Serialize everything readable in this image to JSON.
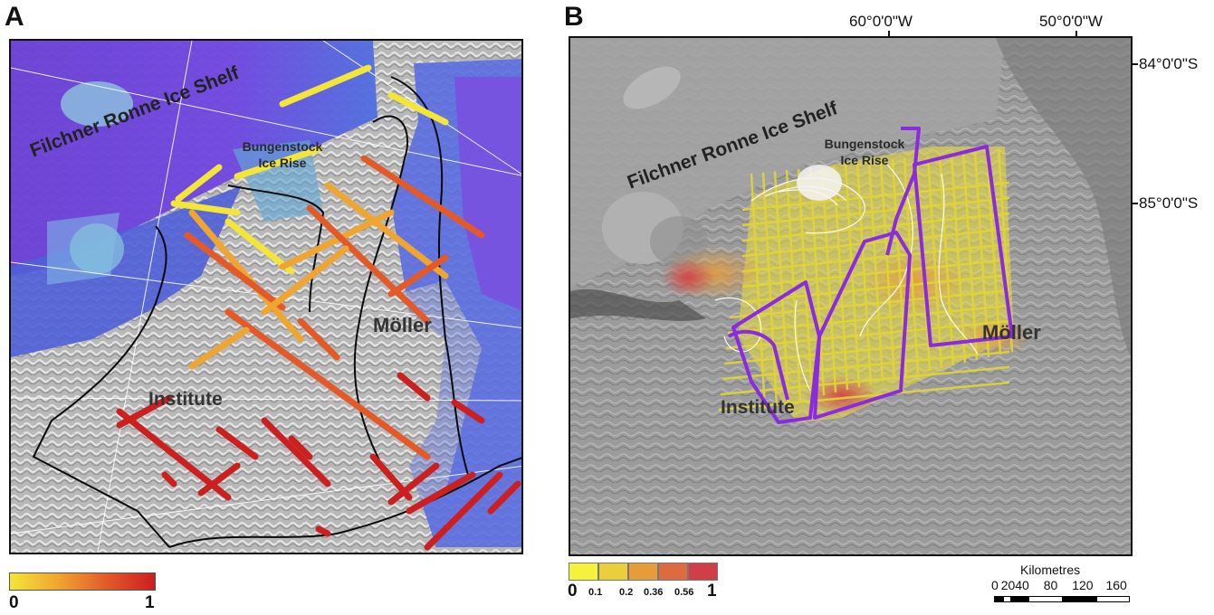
{
  "panel_a": {
    "letter": "A",
    "labels": {
      "ice_shelf": "Filchner Ronne Ice Shelf",
      "ice_rise": "Bungenstock Ice Rise",
      "moller": "Möller",
      "institute": "Institute"
    },
    "legend": {
      "min": "0",
      "max": "1",
      "colors": [
        "#f4e53a",
        "#f0a531",
        "#e35a28",
        "#cc1f1f"
      ]
    }
  },
  "panel_b": {
    "letter": "B",
    "labels": {
      "ice_shelf": "Filchner Ronne Ice Shelf",
      "ice_rise": "Bungenstock Ice Rise",
      "moller": "Möller",
      "institute": "Institute"
    },
    "longitudes": [
      "60°0'0\"W",
      "50°0'0\"W"
    ],
    "latitudes": [
      "84°0'0\"S",
      "85°0'0\"S"
    ],
    "legend": {
      "classes": [
        "#f6f23c",
        "#eccd3b",
        "#e79c3a",
        "#dd6b3f",
        "#d23e45"
      ],
      "ticks": [
        "0",
        "0.1",
        "0.2",
        "0.36",
        "0.56",
        "1"
      ]
    },
    "scale_bar": {
      "title": "Kilometres",
      "ticks": [
        "0",
        "20",
        "40",
        "80",
        "120",
        "160"
      ]
    }
  }
}
